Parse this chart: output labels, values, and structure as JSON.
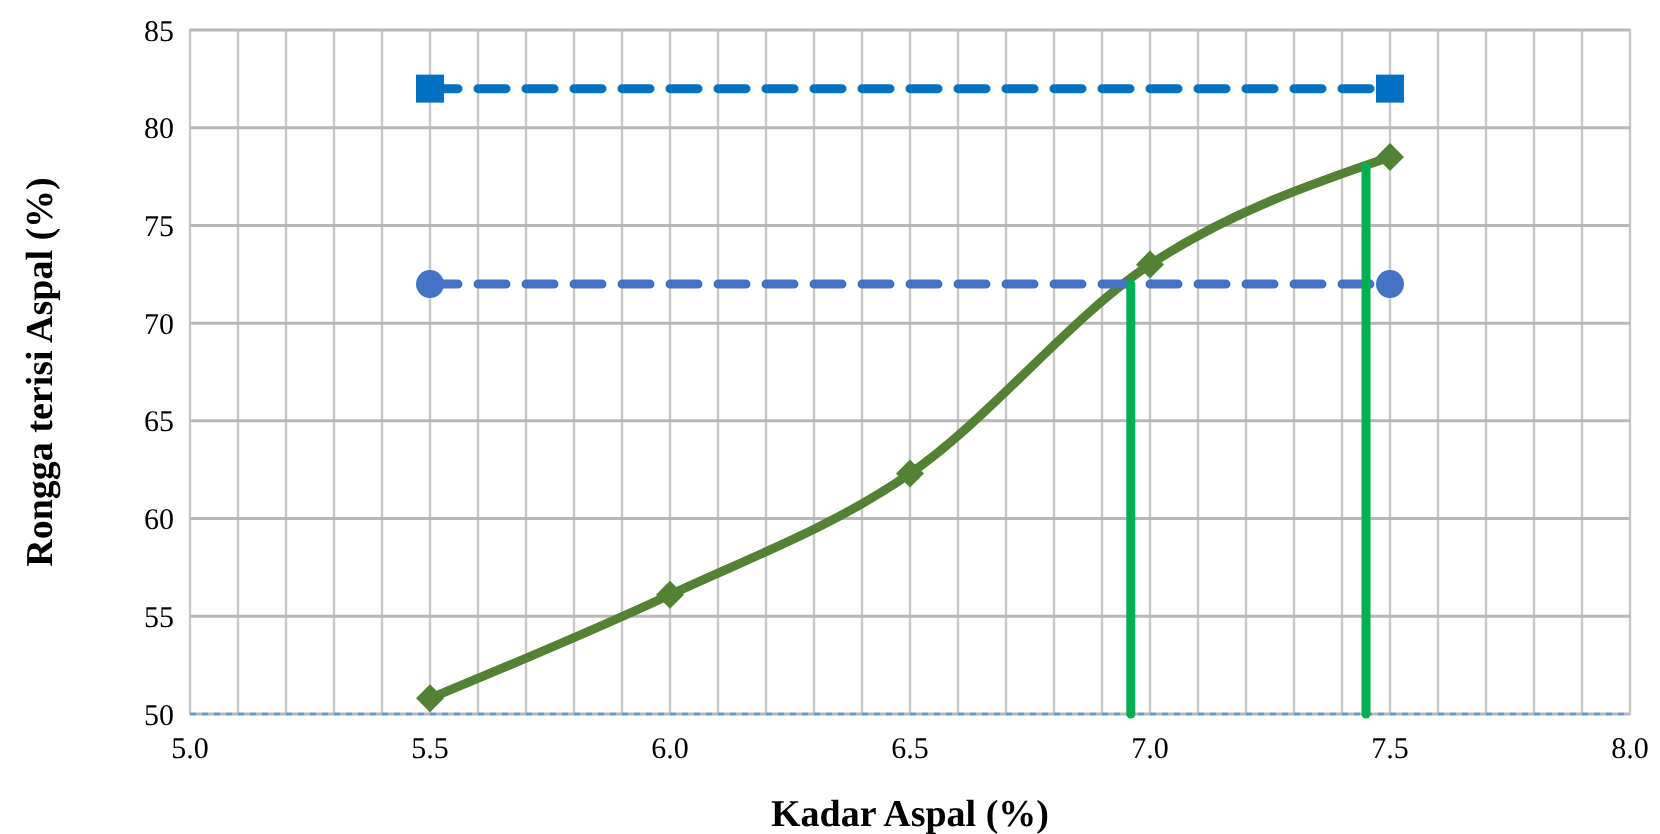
{
  "chart_data": {
    "type": "line",
    "xlabel": "Kadar Aspal (%)",
    "ylabel": "Rongga terisi Aspal (%)",
    "xlim": [
      5.0,
      8.0
    ],
    "ylim": [
      50,
      85
    ],
    "xticks": [
      {
        "value": 5.0,
        "label": "5.0"
      },
      {
        "value": 5.1,
        "label": null
      },
      {
        "value": 5.2,
        "label": null
      },
      {
        "value": 5.3,
        "label": null
      },
      {
        "value": 5.4,
        "label": null
      },
      {
        "value": 5.5,
        "label": "5.5"
      },
      {
        "value": 5.6,
        "label": null
      },
      {
        "value": 5.7,
        "label": null
      },
      {
        "value": 5.8,
        "label": null
      },
      {
        "value": 5.9,
        "label": null
      },
      {
        "value": 6.0,
        "label": "6.0"
      },
      {
        "value": 6.1,
        "label": null
      },
      {
        "value": 6.2,
        "label": null
      },
      {
        "value": 6.3,
        "label": null
      },
      {
        "value": 6.4,
        "label": null
      },
      {
        "value": 6.5,
        "label": "6.5"
      },
      {
        "value": 6.6,
        "label": null
      },
      {
        "value": 6.7,
        "label": null
      },
      {
        "value": 6.8,
        "label": null
      },
      {
        "value": 6.9,
        "label": null
      },
      {
        "value": 7.0,
        "label": "7.0"
      },
      {
        "value": 7.1,
        "label": null
      },
      {
        "value": 7.2,
        "label": null
      },
      {
        "value": 7.3,
        "label": null
      },
      {
        "value": 7.4,
        "label": null
      },
      {
        "value": 7.5,
        "label": "7.5"
      },
      {
        "value": 7.6,
        "label": null
      },
      {
        "value": 7.7,
        "label": null
      },
      {
        "value": 7.8,
        "label": null
      },
      {
        "value": 7.9,
        "label": null
      },
      {
        "value": 8.0,
        "label": "8.0"
      }
    ],
    "yticks": [
      50,
      55,
      60,
      65,
      70,
      75,
      80,
      85
    ],
    "grid": true,
    "ref_lines": [
      {
        "axis": "y",
        "value": 50,
        "color": "#5b9bd5",
        "line_style": "dotted"
      }
    ],
    "series": [
      {
        "color": "#548235",
        "x": [
          5.5,
          6.0,
          6.5,
          7.0,
          7.5
        ],
        "values": [
          50.8,
          56.1,
          62.3,
          73.0,
          78.5
        ],
        "marker": "diamond",
        "line_style": "solid"
      },
      {
        "color": "#0070c0",
        "x": [
          5.5,
          7.5
        ],
        "values": [
          82,
          82
        ],
        "marker": "square",
        "line_style": "dashed"
      },
      {
        "color": "#4472c4",
        "x": [
          5.5,
          7.5
        ],
        "values": [
          72,
          72
        ],
        "marker": "circle",
        "line_style": "dashed"
      },
      {
        "color": "#00b050",
        "x": [
          6.96,
          6.96
        ],
        "values": [
          50,
          72
        ],
        "marker": "none",
        "line_style": "solid"
      },
      {
        "color": "#00b050",
        "x": [
          7.45,
          7.45
        ],
        "values": [
          50,
          78
        ],
        "marker": "none",
        "line_style": "solid"
      }
    ]
  }
}
